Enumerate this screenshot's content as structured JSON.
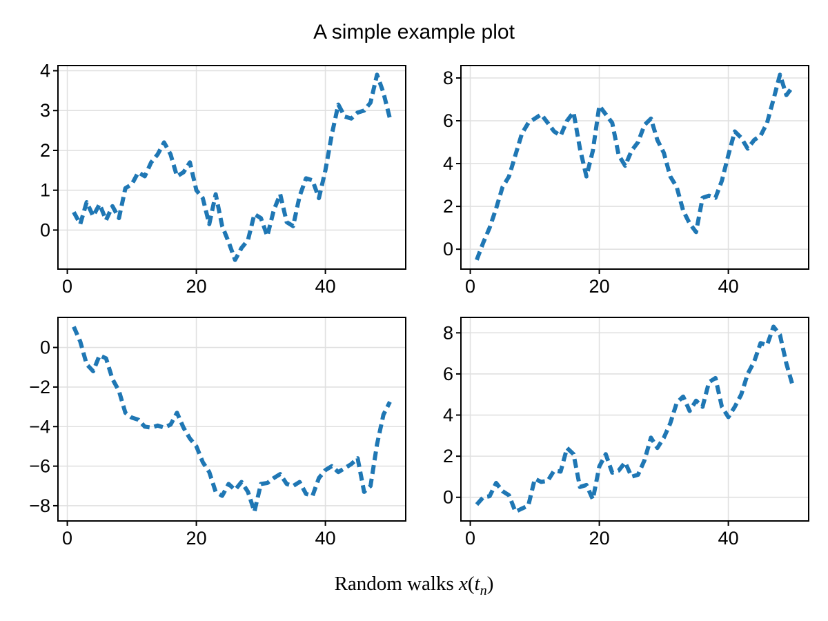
{
  "title": "A simple example plot",
  "caption": {
    "prefix": "Random walks ",
    "var_x": "x",
    "paren_open": "(",
    "var_t": "t",
    "subscript": "n",
    "paren_close": ")"
  },
  "colors": {
    "line": "#1f77b4",
    "grid": "#e0e0e0",
    "spine": "#000000",
    "tick_label": "#000000",
    "background": "#ffffff"
  },
  "chart_data": {
    "layout": "2x2 grid of subplots",
    "suptitle": "A simple example plot",
    "shared_xlabel": "Random walks x(t_n)",
    "line_style": "dashed",
    "line_width": 6,
    "grid": true,
    "legend": "none",
    "x": [
      1,
      2,
      3,
      4,
      5,
      6,
      7,
      8,
      9,
      10,
      11,
      12,
      13,
      14,
      15,
      16,
      17,
      18,
      19,
      20,
      21,
      22,
      23,
      24,
      25,
      26,
      27,
      28,
      29,
      30,
      31,
      32,
      33,
      34,
      35,
      36,
      37,
      38,
      39,
      40,
      41,
      42,
      43,
      44,
      45,
      46,
      47,
      48,
      49,
      50
    ],
    "charts": [
      {
        "name": "top-left",
        "type": "line",
        "xlim": [
          -1.45,
          52.45
        ],
        "ylim": [
          -0.98,
          4.13
        ],
        "xticks": [
          0,
          20,
          40
        ],
        "yticks": [
          0,
          1,
          2,
          3,
          4
        ],
        "y": [
          0.45,
          0.15,
          0.7,
          0.35,
          0.65,
          0.25,
          0.6,
          0.3,
          1.05,
          1.15,
          1.45,
          1.35,
          1.7,
          1.9,
          2.2,
          1.9,
          1.35,
          1.45,
          1.7,
          1.0,
          0.8,
          0.15,
          0.9,
          0.1,
          -0.3,
          -0.75,
          -0.45,
          -0.25,
          0.4,
          0.3,
          -0.15,
          0.5,
          0.9,
          0.2,
          0.1,
          0.85,
          1.3,
          1.25,
          0.8,
          1.5,
          2.4,
          3.15,
          2.85,
          2.8,
          2.95,
          3.0,
          3.2,
          3.9,
          3.45,
          2.8
        ]
      },
      {
        "name": "top-right",
        "type": "line",
        "xlim": [
          -1.45,
          52.45
        ],
        "ylim": [
          -0.93,
          8.58
        ],
        "xticks": [
          0,
          20,
          40
        ],
        "yticks": [
          0,
          2,
          4,
          6,
          8
        ],
        "y": [
          -0.5,
          0.3,
          1.0,
          1.9,
          2.9,
          3.4,
          4.4,
          5.4,
          5.9,
          6.1,
          6.3,
          5.9,
          5.5,
          5.3,
          6.0,
          6.4,
          4.7,
          3.4,
          4.6,
          6.7,
          6.3,
          5.9,
          4.4,
          3.9,
          4.6,
          5.0,
          5.8,
          6.1,
          5.1,
          4.5,
          3.4,
          2.9,
          1.8,
          1.2,
          0.8,
          2.4,
          2.5,
          2.4,
          3.2,
          4.4,
          5.5,
          5.2,
          4.7,
          5.1,
          5.3,
          5.9,
          7.0,
          8.15,
          7.2,
          7.6
        ]
      },
      {
        "name": "bottom-left",
        "type": "line",
        "xlim": [
          -1.45,
          52.45
        ],
        "ylim": [
          -8.77,
          1.52
        ],
        "xticks": [
          0,
          20,
          40
        ],
        "yticks": [
          0,
          -2,
          -4,
          -6,
          -8
        ],
        "y": [
          1.05,
          0.3,
          -0.85,
          -1.2,
          -0.4,
          -0.55,
          -1.6,
          -2.2,
          -3.3,
          -3.55,
          -3.65,
          -4.0,
          -4.05,
          -3.95,
          -4.05,
          -3.9,
          -3.3,
          -4.05,
          -4.6,
          -5.0,
          -5.8,
          -6.3,
          -7.3,
          -7.5,
          -6.9,
          -7.2,
          -6.8,
          -7.3,
          -8.3,
          -6.9,
          -6.85,
          -6.6,
          -6.4,
          -6.9,
          -7.0,
          -6.8,
          -7.4,
          -7.5,
          -6.6,
          -6.2,
          -6.0,
          -6.3,
          -6.1,
          -5.9,
          -5.6,
          -7.3,
          -7.0,
          -4.9,
          -3.4,
          -2.75
        ]
      },
      {
        "name": "bottom-right",
        "type": "line",
        "xlim": [
          -1.45,
          52.45
        ],
        "ylim": [
          -1.15,
          8.75
        ],
        "xticks": [
          0,
          20,
          40
        ],
        "yticks": [
          0,
          2,
          4,
          6,
          8
        ],
        "y": [
          -0.35,
          0.0,
          0.05,
          0.7,
          0.3,
          0.1,
          -0.7,
          -0.55,
          -0.4,
          0.9,
          0.75,
          0.8,
          1.3,
          1.25,
          2.4,
          2.1,
          0.5,
          0.6,
          -0.1,
          1.5,
          2.1,
          1.2,
          1.3,
          1.7,
          1.0,
          1.1,
          1.8,
          2.9,
          2.4,
          2.9,
          3.6,
          4.6,
          4.9,
          4.2,
          4.7,
          4.4,
          5.6,
          5.8,
          4.4,
          3.9,
          4.4,
          5.0,
          6.0,
          6.6,
          7.5,
          7.4,
          8.3,
          7.9,
          6.5,
          5.4
        ]
      }
    ]
  }
}
